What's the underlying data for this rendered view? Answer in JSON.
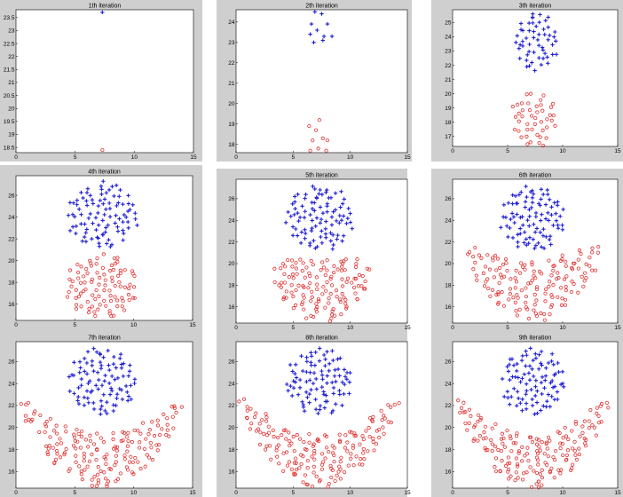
{
  "figure": {
    "background": "#ffffff",
    "panel_frame_color": "#cfcfcf",
    "plot_color": "#ffffff",
    "star_color": "#1f1fd6",
    "circle_color": "#e03030"
  },
  "chart_data": [
    {
      "type": "scatter",
      "title": "1th iteration",
      "xlabel": "",
      "ylabel": "",
      "xlim": [
        0,
        15
      ],
      "ylim": [
        18.3,
        23.8
      ],
      "xticks": [
        "0",
        "5",
        "10",
        "15"
      ],
      "yticks": [
        "18.5",
        "19",
        "19.5",
        "20",
        "20.5",
        "21",
        "21.5",
        "22",
        "22.5",
        "23",
        "23.5"
      ],
      "grid": false,
      "series": [
        {
          "marker": "star",
          "values": [
            [
              7.3,
              23.7
            ]
          ]
        },
        {
          "marker": "circle",
          "values": [
            [
              7.3,
              18.4
            ]
          ]
        }
      ]
    },
    {
      "type": "scatter",
      "title": "2th iteration",
      "xlabel": "",
      "ylabel": "",
      "xlim": [
        0,
        15
      ],
      "ylim": [
        17.6,
        24.6
      ],
      "xticks": [
        "0",
        "5",
        "10",
        "15"
      ],
      "yticks": [
        "18",
        "19",
        "20",
        "21",
        "22",
        "23",
        "24"
      ],
      "grid": false,
      "series": [
        {
          "marker": "star",
          "values": [
            [
              6.9,
              24.5
            ],
            [
              7.5,
              24.4
            ],
            [
              6.6,
              23.9
            ],
            [
              8.0,
              23.9
            ],
            [
              7.1,
              23.6
            ],
            [
              6.5,
              23.4
            ],
            [
              7.7,
              23.3
            ],
            [
              8.4,
              23.3
            ],
            [
              6.8,
              23.0
            ],
            [
              7.6,
              23.1
            ]
          ]
        },
        {
          "marker": "circle",
          "values": [
            [
              7.3,
              19.2
            ],
            [
              6.4,
              18.9
            ],
            [
              7.0,
              18.7
            ],
            [
              7.6,
              18.3
            ],
            [
              6.7,
              18.2
            ],
            [
              8.0,
              18.2
            ],
            [
              7.2,
              17.8
            ],
            [
              6.5,
              17.7
            ],
            [
              7.9,
              17.7
            ]
          ]
        }
      ]
    },
    {
      "type": "scatter",
      "title": "3th iteration",
      "xlabel": "",
      "ylabel": "",
      "xlim": [
        0,
        15
      ],
      "ylim": [
        16.3,
        25.9
      ],
      "xticks": [
        "0",
        "5",
        "10",
        "15"
      ],
      "yticks": [
        "17",
        "18",
        "19",
        "20",
        "21",
        "22",
        "23",
        "24",
        "25"
      ],
      "grid": false,
      "generator": {
        "seed": 3,
        "cluster_star": {
          "cx": 7.6,
          "cy": 23.7,
          "rx": 2.0,
          "ry": 2.1,
          "n": 55
        },
        "cluster_circle": {
          "cx": 7.4,
          "cy": 18.2,
          "rx": 2.1,
          "ry": 2.0,
          "n": 45
        }
      }
    },
    {
      "type": "scatter",
      "title": "4th iteration",
      "xlabel": "",
      "ylabel": "",
      "xlim": [
        0,
        15
      ],
      "ylim": [
        14.5,
        27.8
      ],
      "xticks": [
        "0",
        "5",
        "10",
        "15"
      ],
      "yticks": [
        "16",
        "18",
        "20",
        "22",
        "24",
        "26"
      ],
      "grid": false,
      "generator": {
        "seed": 4,
        "cluster_star": {
          "cx": 7.3,
          "cy": 24.2,
          "rx": 3.0,
          "ry": 3.1,
          "n": 95
        },
        "cluster_circle": {
          "cx": 7.3,
          "cy": 17.6,
          "rx": 3.1,
          "ry": 3.0,
          "n": 95
        }
      }
    },
    {
      "type": "scatter",
      "title": "5th iteration",
      "xlabel": "",
      "ylabel": "",
      "xlim": [
        0,
        15
      ],
      "ylim": [
        14.5,
        27.8
      ],
      "xticks": [
        "0",
        "5",
        "10",
        "15"
      ],
      "yticks": [
        "16",
        "18",
        "20",
        "22",
        "24",
        "26"
      ],
      "grid": false,
      "generator": {
        "seed": 5,
        "cluster_star": {
          "cx": 7.3,
          "cy": 24.2,
          "rx": 2.9,
          "ry": 3.1,
          "n": 95
        },
        "cluster_circle": {
          "cx": 7.5,
          "cy": 17.5,
          "rx": 4.3,
          "ry": 3.0,
          "n": 130,
          "curve": 0.15
        }
      }
    },
    {
      "type": "scatter",
      "title": "6th iteration",
      "xlabel": "",
      "ylabel": "",
      "xlim": [
        0,
        15
      ],
      "ylim": [
        14.5,
        27.8
      ],
      "xticks": [
        "0",
        "5",
        "10",
        "15"
      ],
      "yticks": [
        "16",
        "18",
        "20",
        "22",
        "24",
        "26"
      ],
      "grid": false,
      "generator": {
        "seed": 6,
        "cluster_star": {
          "cx": 7.3,
          "cy": 24.2,
          "rx": 2.9,
          "ry": 3.1,
          "n": 95
        },
        "cluster_circle": {
          "cx": 7.3,
          "cy": 17.5,
          "rx": 6.2,
          "ry": 2.8,
          "n": 150,
          "curve": 0.35
        }
      }
    },
    {
      "type": "scatter",
      "title": "7th iteration",
      "xlabel": "",
      "ylabel": "",
      "xlim": [
        0,
        15
      ],
      "ylim": [
        14.5,
        27.8
      ],
      "xticks": [
        "0",
        "5",
        "10",
        "15"
      ],
      "yticks": [
        "16",
        "18",
        "20",
        "22",
        "24",
        "26"
      ],
      "grid": false,
      "generator": {
        "seed": 7,
        "cluster_star": {
          "cx": 7.3,
          "cy": 24.2,
          "rx": 2.9,
          "ry": 3.1,
          "n": 95
        },
        "cluster_circle": {
          "cx": 7.3,
          "cy": 17.0,
          "rx": 7.0,
          "ry": 2.5,
          "n": 170,
          "curve": 0.55
        }
      }
    },
    {
      "type": "scatter",
      "title": "8th iteration",
      "xlabel": "",
      "ylabel": "",
      "xlim": [
        0,
        15
      ],
      "ylim": [
        14.5,
        27.8
      ],
      "xticks": [
        "0",
        "5",
        "10",
        "15"
      ],
      "yticks": [
        "16",
        "18",
        "20",
        "22",
        "24",
        "26"
      ],
      "grid": false,
      "generator": {
        "seed": 8,
        "cluster_star": {
          "cx": 7.3,
          "cy": 24.2,
          "rx": 2.9,
          "ry": 3.1,
          "n": 95
        },
        "cluster_circle": {
          "cx": 7.3,
          "cy": 16.9,
          "rx": 7.0,
          "ry": 2.4,
          "n": 175,
          "curve": 0.6
        }
      }
    },
    {
      "type": "scatter",
      "title": "9th iteration",
      "xlabel": "",
      "ylabel": "",
      "xlim": [
        0,
        15
      ],
      "ylim": [
        14.5,
        27.8
      ],
      "xticks": [
        "0",
        "5",
        "10",
        "15"
      ],
      "yticks": [
        "16",
        "18",
        "20",
        "22",
        "24",
        "26"
      ],
      "grid": false,
      "generator": {
        "seed": 9,
        "cluster_star": {
          "cx": 7.3,
          "cy": 24.2,
          "rx": 2.9,
          "ry": 3.1,
          "n": 95
        },
        "cluster_circle": {
          "cx": 7.3,
          "cy": 16.9,
          "rx": 7.0,
          "ry": 2.4,
          "n": 175,
          "curve": 0.6
        }
      }
    }
  ]
}
